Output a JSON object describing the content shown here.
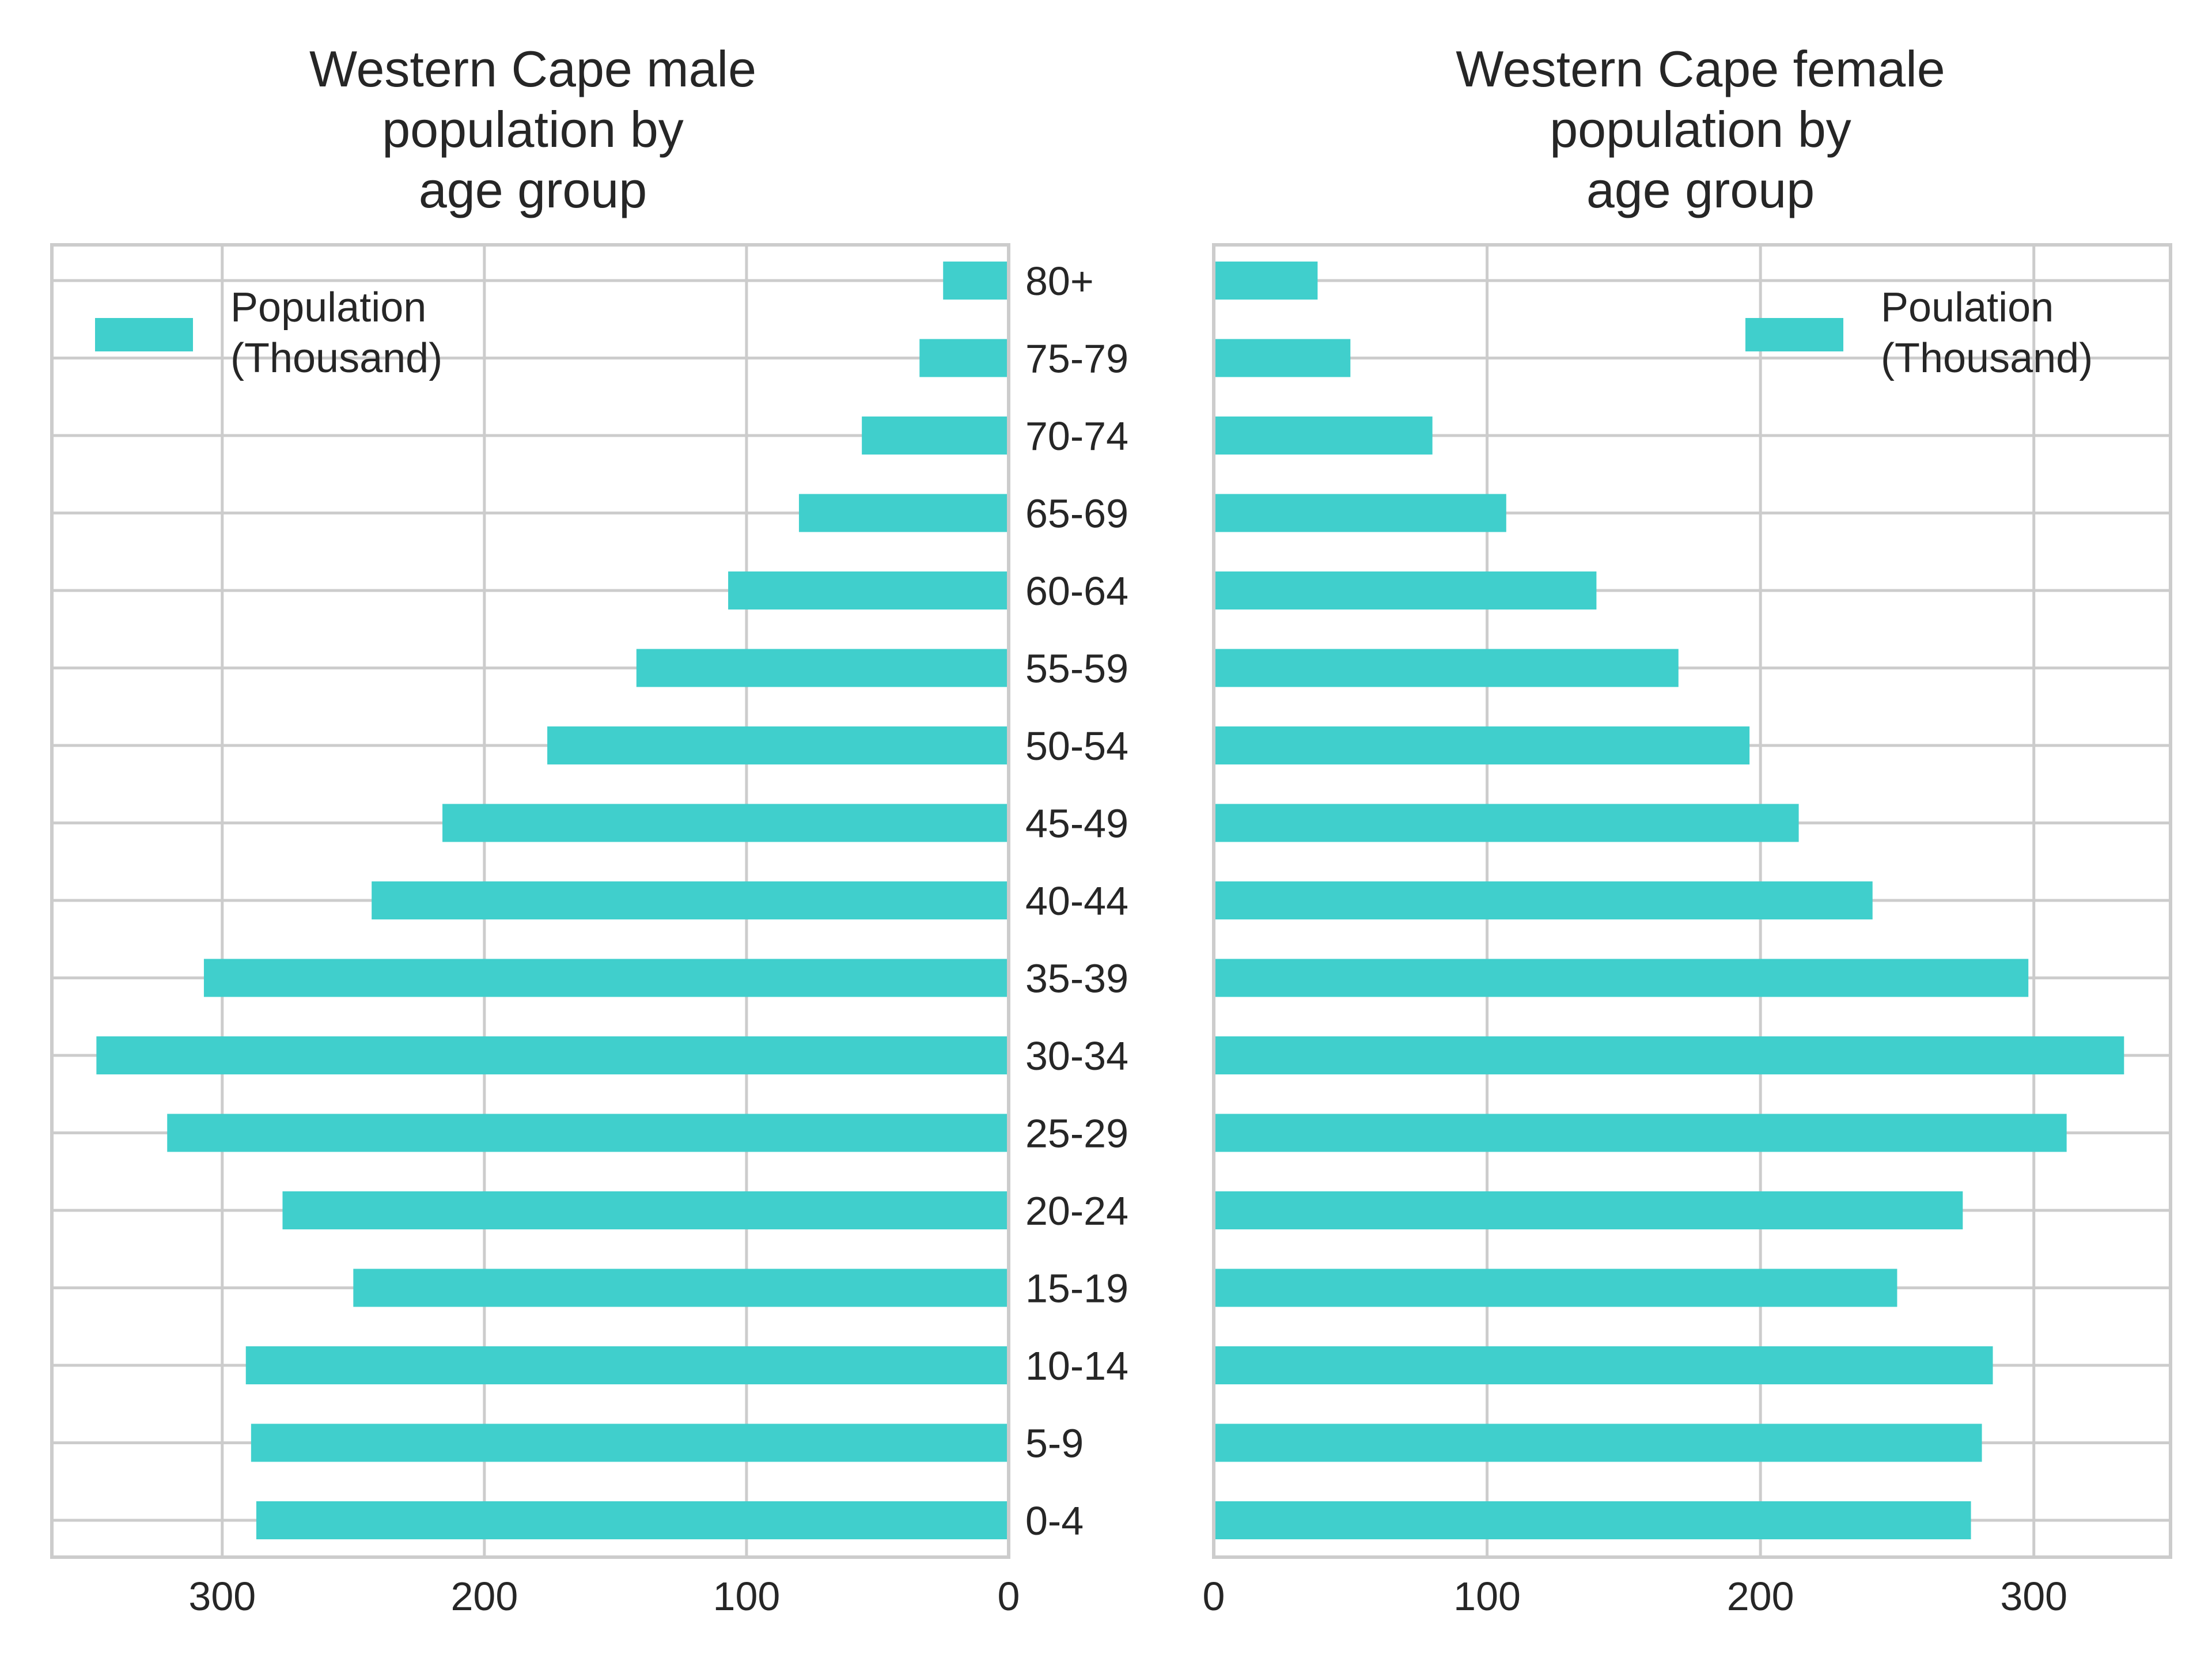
{
  "chart_data": [
    {
      "type": "bar",
      "orientation": "horizontal",
      "direction": "right-to-left",
      "title": "Western Cape male\npopulation by\nage group",
      "categories": [
        "0-4",
        "5-9",
        "10-14",
        "15-19",
        "20-24",
        "25-29",
        "30-34",
        "35-39",
        "40-44",
        "45-49",
        "50-54",
        "55-59",
        "60-64",
        "65-69",
        "70-74",
        "75-79",
        "80+"
      ],
      "series": [
        {
          "name": "Population\n(Thousand)",
          "values": [
            287,
            289,
            291,
            250,
            277,
            321,
            348,
            307,
            243,
            216,
            176,
            142,
            107,
            80,
            56,
            34,
            25
          ]
        }
      ],
      "xticks": [
        300,
        200,
        100,
        0
      ],
      "xlim": [
        0,
        365
      ],
      "legend": "top-left",
      "grid": true,
      "color": "#40CFCC"
    },
    {
      "type": "bar",
      "orientation": "horizontal",
      "direction": "left-to-right",
      "title": "Western Cape female\npopulation by\nage group",
      "categories": [
        "0-4",
        "5-9",
        "10-14",
        "15-19",
        "20-24",
        "25-29",
        "30-34",
        "35-39",
        "40-44",
        "45-49",
        "50-54",
        "55-59",
        "60-64",
        "65-69",
        "70-74",
        "75-79",
        "80+"
      ],
      "series": [
        {
          "name": "Poulation\n(Thousand)",
          "values": [
            277,
            281,
            285,
            250,
            274,
            312,
            333,
            298,
            241,
            214,
            196,
            170,
            140,
            107,
            80,
            50,
            38
          ]
        }
      ],
      "xticks": [
        0,
        100,
        200,
        300
      ],
      "xlim": [
        0,
        350
      ],
      "legend": "top-right",
      "grid": true,
      "color": "#40CFCC"
    }
  ]
}
